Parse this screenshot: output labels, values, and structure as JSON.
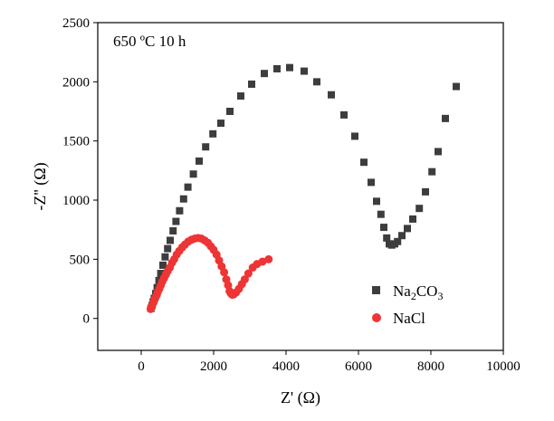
{
  "chart_data": {
    "type": "scatter",
    "title": "",
    "annotation": "650 ºC 10 h",
    "xlabel": "Z' (Ω)",
    "ylabel": "-Z'' (Ω)",
    "xlim": [
      -1200,
      10000
    ],
    "ylim": [
      -270,
      2500
    ],
    "xticks": [
      0,
      2000,
      4000,
      6000,
      8000,
      10000
    ],
    "yticks": [
      0,
      500,
      1000,
      1500,
      2000,
      2500
    ],
    "grid": false,
    "legend_position": "bottom-right",
    "series": [
      {
        "name": "Na2CO3",
        "legend_label": "Na",
        "legend_sub1": "2",
        "legend_mid": "CO",
        "legend_sub2": "3",
        "color": "#3d3d3d",
        "marker": "square",
        "points": [
          [
            270,
            85
          ],
          [
            300,
            110
          ],
          [
            330,
            140
          ],
          [
            360,
            170
          ],
          [
            400,
            210
          ],
          [
            440,
            260
          ],
          [
            490,
            320
          ],
          [
            540,
            380
          ],
          [
            600,
            450
          ],
          [
            660,
            520
          ],
          [
            730,
            590
          ],
          [
            800,
            660
          ],
          [
            880,
            740
          ],
          [
            960,
            820
          ],
          [
            1060,
            910
          ],
          [
            1170,
            1010
          ],
          [
            1290,
            1110
          ],
          [
            1440,
            1220
          ],
          [
            1600,
            1330
          ],
          [
            1780,
            1450
          ],
          [
            1980,
            1560
          ],
          [
            2200,
            1650
          ],
          [
            2450,
            1750
          ],
          [
            2750,
            1880
          ],
          [
            3050,
            1980
          ],
          [
            3400,
            2070
          ],
          [
            3750,
            2110
          ],
          [
            4100,
            2120
          ],
          [
            4500,
            2090
          ],
          [
            4850,
            2000
          ],
          [
            5250,
            1890
          ],
          [
            5600,
            1720
          ],
          [
            5900,
            1540
          ],
          [
            6150,
            1320
          ],
          [
            6350,
            1150
          ],
          [
            6500,
            990
          ],
          [
            6620,
            880
          ],
          [
            6700,
            770
          ],
          [
            6780,
            680
          ],
          [
            6850,
            630
          ],
          [
            6920,
            620
          ],
          [
            7000,
            630
          ],
          [
            7080,
            650
          ],
          [
            7200,
            700
          ],
          [
            7350,
            760
          ],
          [
            7500,
            840
          ],
          [
            7680,
            930
          ],
          [
            7850,
            1070
          ],
          [
            8030,
            1240
          ],
          [
            8200,
            1410
          ],
          [
            8400,
            1690
          ],
          [
            8700,
            1960
          ]
        ]
      },
      {
        "name": "NaCl",
        "legend_label": "NaCl",
        "color": "#ee3434",
        "marker": "circle",
        "points": [
          [
            260,
            80
          ],
          [
            280,
            95
          ],
          [
            300,
            110
          ],
          [
            320,
            125
          ],
          [
            345,
            140
          ],
          [
            370,
            160
          ],
          [
            400,
            180
          ],
          [
            430,
            200
          ],
          [
            460,
            225
          ],
          [
            500,
            250
          ],
          [
            540,
            280
          ],
          [
            580,
            310
          ],
          [
            630,
            340
          ],
          [
            680,
            370
          ],
          [
            730,
            400
          ],
          [
            790,
            430
          ],
          [
            850,
            470
          ],
          [
            910,
            500
          ],
          [
            980,
            540
          ],
          [
            1050,
            570
          ],
          [
            1130,
            600
          ],
          [
            1210,
            625
          ],
          [
            1300,
            650
          ],
          [
            1390,
            665
          ],
          [
            1480,
            675
          ],
          [
            1570,
            680
          ],
          [
            1660,
            675
          ],
          [
            1750,
            660
          ],
          [
            1840,
            640
          ],
          [
            1920,
            610
          ],
          [
            2000,
            580
          ],
          [
            2080,
            540
          ],
          [
            2150,
            490
          ],
          [
            2220,
            440
          ],
          [
            2290,
            390
          ],
          [
            2350,
            330
          ],
          [
            2400,
            280
          ],
          [
            2440,
            230
          ],
          [
            2480,
            210
          ],
          [
            2520,
            200
          ],
          [
            2560,
            205
          ],
          [
            2620,
            220
          ],
          [
            2700,
            250
          ],
          [
            2780,
            290
          ],
          [
            2860,
            330
          ],
          [
            2960,
            380
          ],
          [
            3080,
            430
          ],
          [
            3200,
            460
          ],
          [
            3350,
            480
          ],
          [
            3520,
            500
          ]
        ]
      }
    ]
  }
}
